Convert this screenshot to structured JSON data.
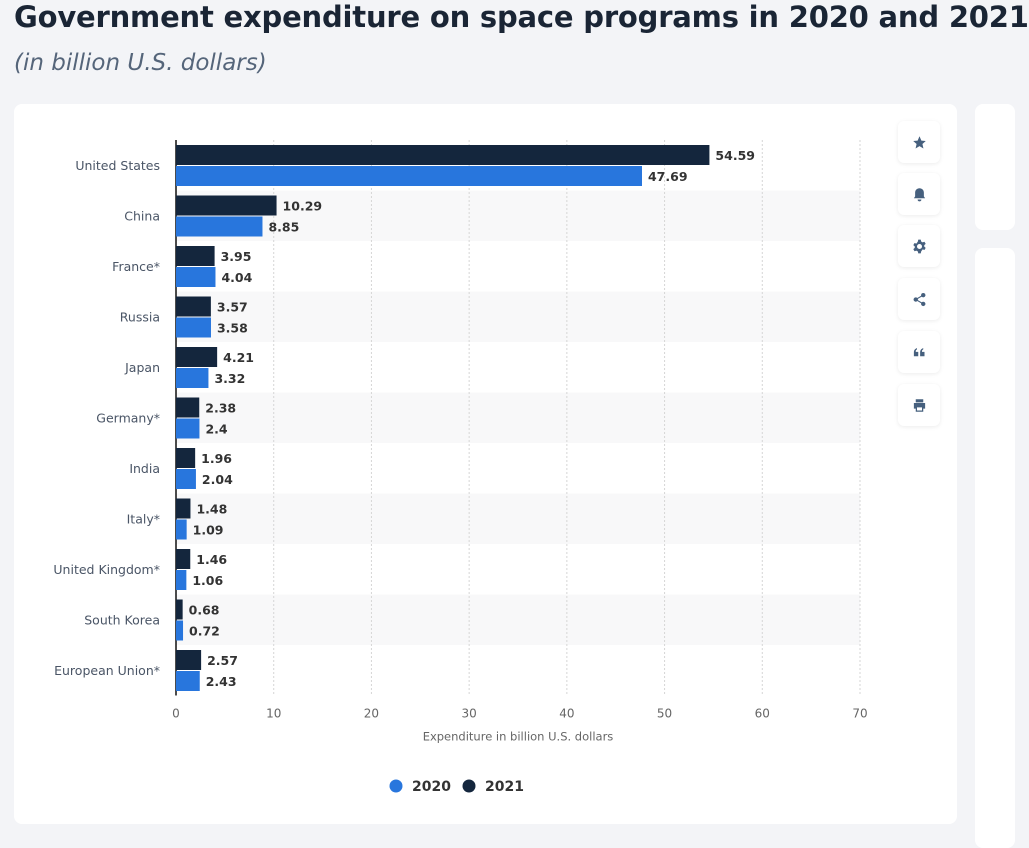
{
  "chart_data": {
    "type": "bar",
    "orientation": "horizontal",
    "title": "Government expenditure on space programs in 2020 and 2021",
    "subtitle": "(in billion U.S. dollars)",
    "xlabel": "Expenditure in billion U.S. dollars",
    "xlim": [
      0,
      70
    ],
    "xticks": [
      0,
      10,
      20,
      30,
      40,
      50,
      60,
      70
    ],
    "grid": true,
    "legend_position": "bottom",
    "categories": [
      "United States",
      "China",
      "France*",
      "Russia",
      "Japan",
      "Germany*",
      "India",
      "Italy*",
      "United Kingdom*",
      "South Korea",
      "European Union*"
    ],
    "series": [
      {
        "name": "2021",
        "color": "#14263d",
        "values": [
          54.59,
          10.29,
          3.95,
          3.57,
          4.21,
          2.38,
          1.96,
          1.48,
          1.46,
          0.68,
          2.57
        ]
      },
      {
        "name": "2020",
        "color": "#2876dd",
        "values": [
          47.69,
          8.85,
          4.04,
          3.58,
          3.32,
          2.4,
          2.04,
          1.09,
          1.06,
          0.72,
          2.43
        ]
      }
    ]
  },
  "toolbar": {
    "buttons": [
      "star-icon",
      "bell-icon",
      "gear-icon",
      "share-icon",
      "quote-icon",
      "print-icon"
    ]
  }
}
